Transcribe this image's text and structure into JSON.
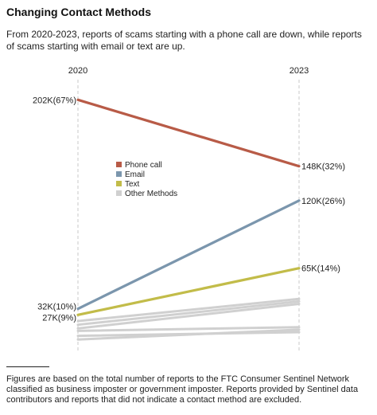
{
  "title": "Changing Contact Methods",
  "subtitle": "From 2020-2023, reports of scams starting with a phone call are down, while reports of scams starting with email or text are up.",
  "footnote": "Figures are based on the total number of reports to the FTC Consumer Sentinel Network classified as business imposter or government imposter. Reports provided by Sentinel data contributors and reports that did not indicate a contact method are excluded.",
  "chart_data": {
    "type": "line",
    "x": [
      "2020",
      "2023"
    ],
    "series": [
      {
        "name": "Phone call",
        "values": [
          202,
          148
        ],
        "labels": [
          "202K(67%)",
          "148K(32%)"
        ],
        "color": "#b85b47"
      },
      {
        "name": "Email",
        "values": [
          32,
          120
        ],
        "labels": [
          "32K(10%)",
          "120K(26%)"
        ],
        "color": "#7b96ad"
      },
      {
        "name": "Text",
        "values": [
          27,
          65
        ],
        "labels": [
          "27K(9%)",
          "65K(14%)"
        ],
        "color": "#c2bc49"
      },
      {
        "name": "Other Methods",
        "values": [
          [
            22,
            40
          ],
          [
            19,
            38
          ],
          [
            16,
            36
          ],
          [
            14,
            17
          ],
          [
            10,
            13
          ],
          [
            7,
            15
          ]
        ],
        "color": "#d0d0d0"
      }
    ],
    "legend": [
      "Phone call",
      "Email",
      "Text",
      "Other Methods"
    ],
    "legend_position": "center-left",
    "units": "thousands of reports",
    "ylim": [
      0,
      210
    ]
  }
}
